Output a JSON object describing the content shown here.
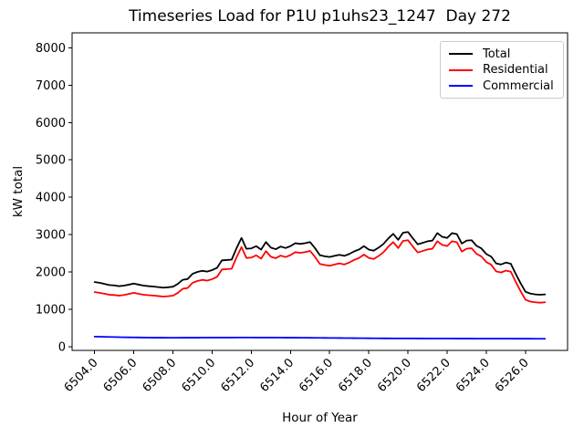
{
  "chart_data": {
    "type": "line",
    "title": "Timeseries Load for P1U p1uhs23_1247  Day 272",
    "xlabel": "Hour of Year",
    "ylabel": "kW total",
    "grid": false,
    "legend_position": "upper right",
    "xlim": [
      6502.85,
      6528.15
    ],
    "ylim": [
      -100,
      8400
    ],
    "xticks": [
      6504,
      6506,
      6508,
      6510,
      6512,
      6514,
      6516,
      6518,
      6520,
      6522,
      6524,
      6526
    ],
    "xtick_labels": [
      "6504.0",
      "6506.0",
      "6508.0",
      "6510.0",
      "6512.0",
      "6514.0",
      "6516.0",
      "6518.0",
      "6520.0",
      "6522.0",
      "6524.0",
      "6526.0"
    ],
    "yticks": [
      0,
      1000,
      2000,
      3000,
      4000,
      5000,
      6000,
      7000,
      8000
    ],
    "ytick_labels": [
      "0",
      "1000",
      "2000",
      "3000",
      "4000",
      "5000",
      "6000",
      "7000",
      "8000"
    ],
    "x_start": 6504.0,
    "x_step": 0.25,
    "x": [
      6504.0,
      6504.25,
      6504.5,
      6504.75,
      6505.0,
      6505.25,
      6505.5,
      6505.75,
      6506.0,
      6506.25,
      6506.5,
      6506.75,
      6507.0,
      6507.25,
      6507.5,
      6507.75,
      6508.0,
      6508.25,
      6508.5,
      6508.75,
      6509.0,
      6509.25,
      6509.5,
      6509.75,
      6510.0,
      6510.25,
      6510.5,
      6510.75,
      6511.0,
      6511.25,
      6511.5,
      6511.75,
      6512.0,
      6512.25,
      6512.5,
      6512.75,
      6513.0,
      6513.25,
      6513.5,
      6513.75,
      6514.0,
      6514.25,
      6514.5,
      6514.75,
      6515.0,
      6515.25,
      6515.5,
      6515.75,
      6516.0,
      6516.25,
      6516.5,
      6516.75,
      6517.0,
      6517.25,
      6517.5,
      6517.75,
      6518.0,
      6518.25,
      6518.5,
      6518.75,
      6519.0,
      6519.25,
      6519.5,
      6519.75,
      6520.0,
      6520.25,
      6520.5,
      6520.75,
      6521.0,
      6521.25,
      6521.5,
      6521.75,
      6522.0,
      6522.25,
      6522.5,
      6522.75,
      6523.0,
      6523.25,
      6523.5,
      6523.75,
      6524.0,
      6524.25,
      6524.5,
      6524.75,
      6525.0,
      6525.25,
      6525.5,
      6525.75,
      6526.0,
      6526.25,
      6526.5,
      6526.75,
      6527.0
    ],
    "series": [
      {
        "name": "Total",
        "color": "#000000",
        "values": [
          1730,
          1710,
          1680,
          1650,
          1640,
          1620,
          1635,
          1660,
          1690,
          1660,
          1635,
          1620,
          1610,
          1595,
          1580,
          1590,
          1605,
          1680,
          1790,
          1810,
          1950,
          2000,
          2030,
          2010,
          2050,
          2110,
          2310,
          2320,
          2330,
          2640,
          2910,
          2620,
          2630,
          2690,
          2600,
          2800,
          2650,
          2610,
          2680,
          2640,
          2690,
          2770,
          2750,
          2770,
          2800,
          2640,
          2450,
          2420,
          2400,
          2430,
          2460,
          2430,
          2480,
          2550,
          2600,
          2690,
          2600,
          2570,
          2650,
          2750,
          2900,
          3020,
          2860,
          3050,
          3070,
          2900,
          2740,
          2780,
          2820,
          2840,
          3040,
          2940,
          2910,
          3040,
          3010,
          2760,
          2840,
          2850,
          2700,
          2630,
          2480,
          2410,
          2230,
          2200,
          2250,
          2220,
          1950,
          1700,
          1470,
          1420,
          1400,
          1390,
          1400
        ]
      },
      {
        "name": "Residential",
        "color": "#ff0000",
        "values": [
          1460,
          1443,
          1416,
          1389,
          1382,
          1365,
          1383,
          1410,
          1442,
          1414,
          1391,
          1378,
          1369,
          1355,
          1340,
          1351,
          1366,
          1441,
          1550,
          1570,
          1709,
          1759,
          1788,
          1768,
          1807,
          1867,
          2066,
          2076,
          2086,
          2395,
          2665,
          2375,
          2385,
          2446,
          2356,
          2557,
          2407,
          2368,
          2438,
          2399,
          2449,
          2530,
          2511,
          2532,
          2563,
          2404,
          2215,
          2186,
          2167,
          2198,
          2229,
          2200,
          2251,
          2322,
          2373,
          2464,
          2375,
          2346,
          2427,
          2528,
          2678,
          2799,
          2639,
          2830,
          2850,
          2680,
          2521,
          2561,
          2602,
          2622,
          2822,
          2723,
          2693,
          2823,
          2794,
          2544,
          2624,
          2634,
          2485,
          2415,
          2265,
          2195,
          2016,
          1986,
          2036,
          2006,
          1737,
          1487,
          1257,
          1207,
          1188,
          1178,
          1188
        ]
      },
      {
        "name": "Commercial",
        "color": "#0000ff",
        "values": [
          270,
          267,
          264,
          261,
          258,
          255,
          252,
          250,
          248,
          246,
          244,
          242,
          241,
          240,
          240,
          239,
          239,
          239,
          240,
          240,
          241,
          241,
          242,
          242,
          243,
          243,
          244,
          244,
          244,
          245,
          245,
          245,
          245,
          244,
          244,
          243,
          243,
          242,
          242,
          241,
          241,
          240,
          239,
          238,
          237,
          236,
          235,
          234,
          233,
          232,
          231,
          230,
          229,
          228,
          227,
          226,
          225,
          224,
          223,
          222,
          222,
          221,
          221,
          220,
          220,
          220,
          219,
          219,
          218,
          218,
          218,
          217,
          217,
          217,
          216,
          216,
          216,
          216,
          215,
          215,
          215,
          215,
          214,
          214,
          214,
          214,
          213,
          213,
          213,
          213,
          212,
          212,
          212
        ]
      }
    ]
  }
}
